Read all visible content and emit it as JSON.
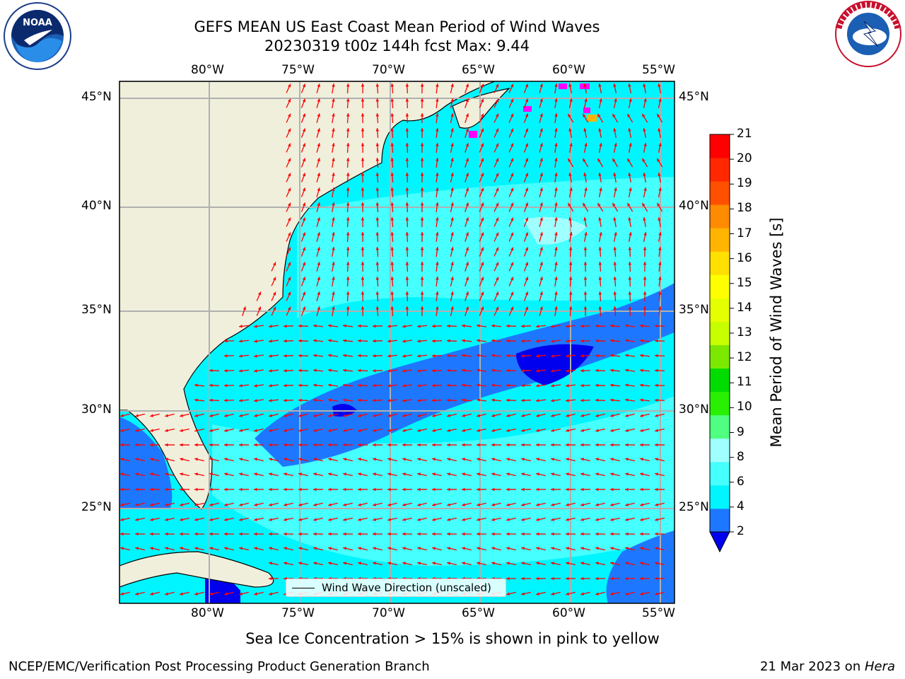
{
  "title_line1": "GEFS MEAN US East Coast Mean Period of Wind Waves",
  "title_line2": "20230319 t00z 144h fcst   Max: 9.44",
  "subtitle": "Sea Ice Concentration > 15% is shown in pink to yellow",
  "footer_left": "NCEP/EMC/Verification Post Processing Product Generation Branch",
  "footer_right_date": "21 Mar 2023 on ",
  "footer_right_host": "Hera",
  "legend_label": "Wind Wave Direction (unscaled)",
  "colorbar_label": "Mean Period of Wind Waves [s]",
  "logos": {
    "left": "noaa-logo",
    "right": "nws-logo"
  },
  "map": {
    "lon_range": [
      -85,
      -54.5
    ],
    "lat_range": [
      20.5,
      46
    ],
    "lon_ticks": [
      "80°W",
      "75°W",
      "70°W",
      "65°W",
      "60°W",
      "55°W"
    ],
    "lat_ticks": [
      "45°N",
      "40°N",
      "35°N",
      "30°N",
      "25°N"
    ],
    "arrow_color": "#ff0000",
    "land_color": "#efefdc",
    "grid": true
  },
  "colorbar": {
    "ticks": [
      "21",
      "20",
      "19",
      "18",
      "17",
      "16",
      "15",
      "14",
      "13",
      "12",
      "11",
      "10",
      "9",
      "8",
      "6",
      "4",
      "2"
    ],
    "colors": [
      "#0000ee",
      "#1e78ff",
      "#00f5ff",
      "#46ffff",
      "#a0ffff",
      "#50ff82",
      "#28f000",
      "#00dc00",
      "#7ce800",
      "#c8ff00",
      "#e6ff00",
      "#ffff00",
      "#ffe000",
      "#ffb400",
      "#ff8c00",
      "#ff5000",
      "#ff2800",
      "#ff0000"
    ]
  }
}
